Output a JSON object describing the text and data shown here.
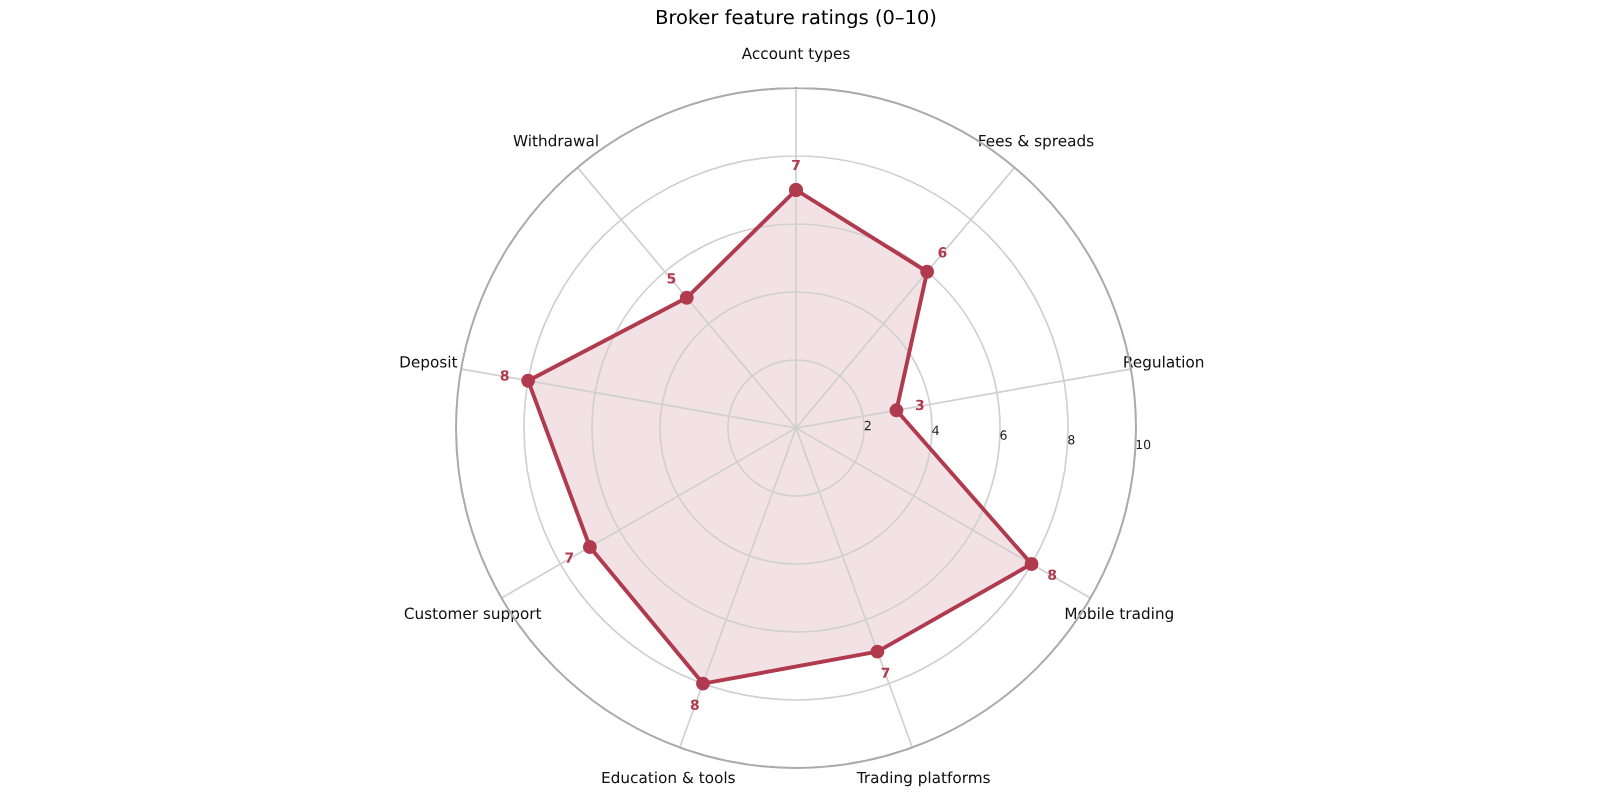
{
  "chart_data": {
    "type": "radar",
    "title": "Broker feature ratings (0–10)",
    "categories": [
      "Account types",
      "Fees & spreads",
      "Regulation",
      "Mobile trading",
      "Trading platforms",
      "Education & tools",
      "Customer support",
      "Deposit",
      "Withdrawal"
    ],
    "series": [
      {
        "color": "#b03a4e",
        "values": [
          7,
          6,
          3,
          8,
          7,
          8,
          7,
          8,
          5
        ]
      }
    ],
    "ylim": [
      0,
      10
    ],
    "yticks": [
      2,
      4,
      6,
      8,
      10
    ],
    "grid": true,
    "marker": "circle",
    "line_style": "solid",
    "data_labels": true
  }
}
